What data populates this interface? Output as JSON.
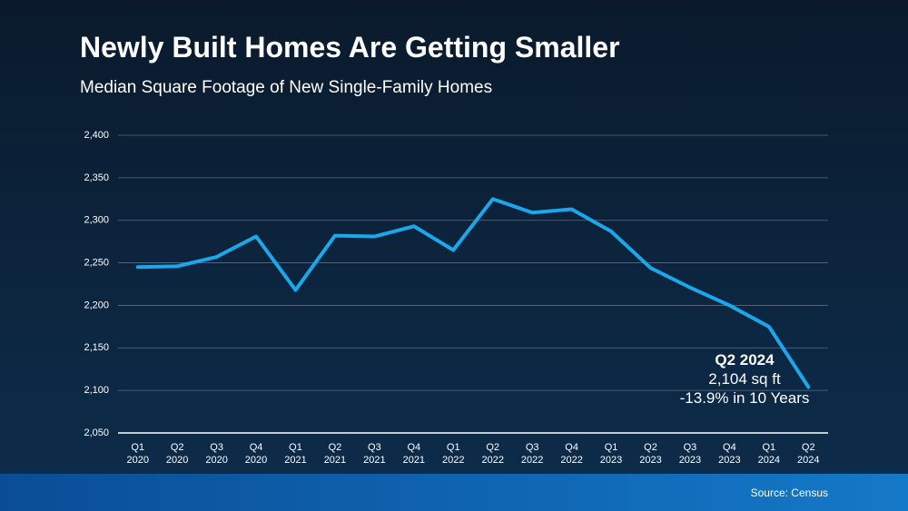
{
  "chart_data": {
    "type": "line",
    "title": "Newly Built Homes Are Getting Smaller",
    "subtitle": "Median Square Footage of New Single-Family Homes",
    "categories": [
      "Q1\n2020",
      "Q2\n2020",
      "Q3\n2020",
      "Q4\n2020",
      "Q1\n2021",
      "Q2\n2021",
      "Q3\n2021",
      "Q4\n2021",
      "Q1\n2022",
      "Q2\n2022",
      "Q3\n2022",
      "Q4\n2022",
      "Q1\n2023",
      "Q2\n2023",
      "Q3\n2023",
      "Q4\n2023",
      "Q1\n2024",
      "Q2\n2024"
    ],
    "values": [
      2245,
      2246,
      2257,
      2281,
      2218,
      2282,
      2281,
      2293,
      2265,
      2325,
      2309,
      2313,
      2287,
      2244,
      2221,
      2200,
      2175,
      2104
    ],
    "color": "#1aa7ec",
    "ylim": [
      2050,
      2400
    ],
    "yticks": [
      {
        "value": 2050,
        "label": "2,050"
      },
      {
        "value": 2100,
        "label": "2,100"
      },
      {
        "value": 2150,
        "label": "2,150"
      },
      {
        "value": 2200,
        "label": "2,200"
      },
      {
        "value": 2250,
        "label": "2,250"
      },
      {
        "value": 2300,
        "label": "2,300"
      },
      {
        "value": 2350,
        "label": "2,350"
      },
      {
        "value": 2400,
        "label": "2,400"
      }
    ],
    "grid": true,
    "annotation": {
      "title": "Q2 2024",
      "lines": [
        "2,104 sq ft",
        "-13.9% in 10 Years"
      ]
    },
    "source": "Source: Census"
  }
}
